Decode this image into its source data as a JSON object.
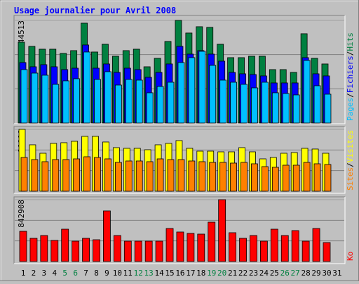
{
  "title": "Usage journalier pour Avril 2008",
  "categories": [
    "1",
    "2",
    "3",
    "4",
    "5",
    "6",
    "7",
    "8",
    "9",
    "10",
    "11",
    "12",
    "13",
    "14",
    "15",
    "16",
    "17",
    "18",
    "19",
    "20",
    "21",
    "22",
    "23",
    "24",
    "25",
    "26",
    "27",
    "28",
    "29",
    "30",
    "31"
  ],
  "category_colors": [
    "#000000",
    "#000000",
    "#000000",
    "#000000",
    "#008040",
    "#008040",
    "#000000",
    "#000000",
    "#000000",
    "#000000",
    "#000000",
    "#008040",
    "#008040",
    "#000000",
    "#000000",
    "#000000",
    "#000000",
    "#000000",
    "#008040",
    "#008040",
    "#000000",
    "#000000",
    "#000000",
    "#000000",
    "#000000",
    "#008040",
    "#008040",
    "#000000",
    "#000000",
    "#000000",
    "#000000"
  ],
  "legend_separator": "/",
  "chart_data": [
    {
      "type": "bar",
      "ylim": [
        0,
        44513
      ],
      "yticks": [
        44513
      ],
      "series": [
        {
          "name": "Hits",
          "color": "#008040",
          "values": [
            35070,
            33245,
            32025,
            32025,
            30195,
            31415,
            43310,
            30805,
            34160,
            28975,
            31415,
            32025,
            24400,
            28060,
            35380,
            44513,
            39040,
            41785,
            41480,
            34160,
            28365,
            28365,
            28975,
            28975,
            23180,
            23180,
            21960,
            38735,
            28060,
            25620,
            null
          ]
        },
        {
          "name": "Fichiers",
          "color": "#0000ff",
          "values": [
            26230,
            24400,
            25315,
            24400,
            23180,
            23790,
            33855,
            23790,
            25620,
            21960,
            23790,
            23180,
            19825,
            21960,
            25620,
            33245,
            29890,
            31415,
            29890,
            26840,
            21960,
            21350,
            21045,
            20435,
            17385,
            17385,
            17385,
            28365,
            21350,
            20435,
            null
          ]
        },
        {
          "name": "Pages",
          "color": "#00c0ff",
          "values": [
            23180,
            21655,
            20740,
            16775,
            18300,
            19215,
            30805,
            18910,
            22265,
            16470,
            18910,
            18605,
            13115,
            15860,
            17690,
            26230,
            28365,
            31110,
            25010,
            18605,
            17690,
            16775,
            15250,
            17690,
            13115,
            12810,
            12200,
            27145,
            16165,
            12505,
            null
          ]
        }
      ]
    },
    {
      "type": "bar",
      "ylim": [
        0,
        11119
      ],
      "yticks": [
        11119
      ],
      "series": [
        {
          "name": "Visites",
          "color": "#ffff00",
          "values": [
            11119,
            8342,
            6826,
            8595,
            8722,
            8974,
            9859,
            9859,
            8848,
            7837,
            7710,
            7710,
            7458,
            8342,
            8595,
            9101,
            7710,
            7205,
            7205,
            7078,
            7078,
            7837,
            7078,
            5814,
            6067,
            6826,
            6952,
            7710,
            7584,
            6826,
            null
          ]
        },
        {
          "name": "Sites",
          "color": "#ff8000",
          "values": [
            6067,
            5688,
            5309,
            5688,
            5688,
            5814,
            6194,
            6067,
            5814,
            5182,
            5435,
            5435,
            5309,
            5814,
            5688,
            5688,
            5435,
            5309,
            5182,
            5182,
            5056,
            5182,
            4930,
            4424,
            4298,
            4677,
            4677,
            5182,
            4930,
            4803,
            null
          ]
        }
      ]
    },
    {
      "type": "bar",
      "ylim": [
        0,
        842908
      ],
      "yticks": [
        842908
      ],
      "series": [
        {
          "name": "Ko",
          "color": "#ff0000",
          "values": [
            411876,
            316090,
            354405,
            287355,
            440611,
            277777,
            316090,
            296934,
            689652,
            354405,
            277777,
            277777,
            277777,
            277777,
            450190,
            402297,
            383140,
            373562,
            536396,
            842908,
            392719,
            316090,
            354405,
            277777,
            440611,
            354405,
            421454,
            277777,
            450190,
            258620,
            null
          ]
        }
      ]
    }
  ]
}
